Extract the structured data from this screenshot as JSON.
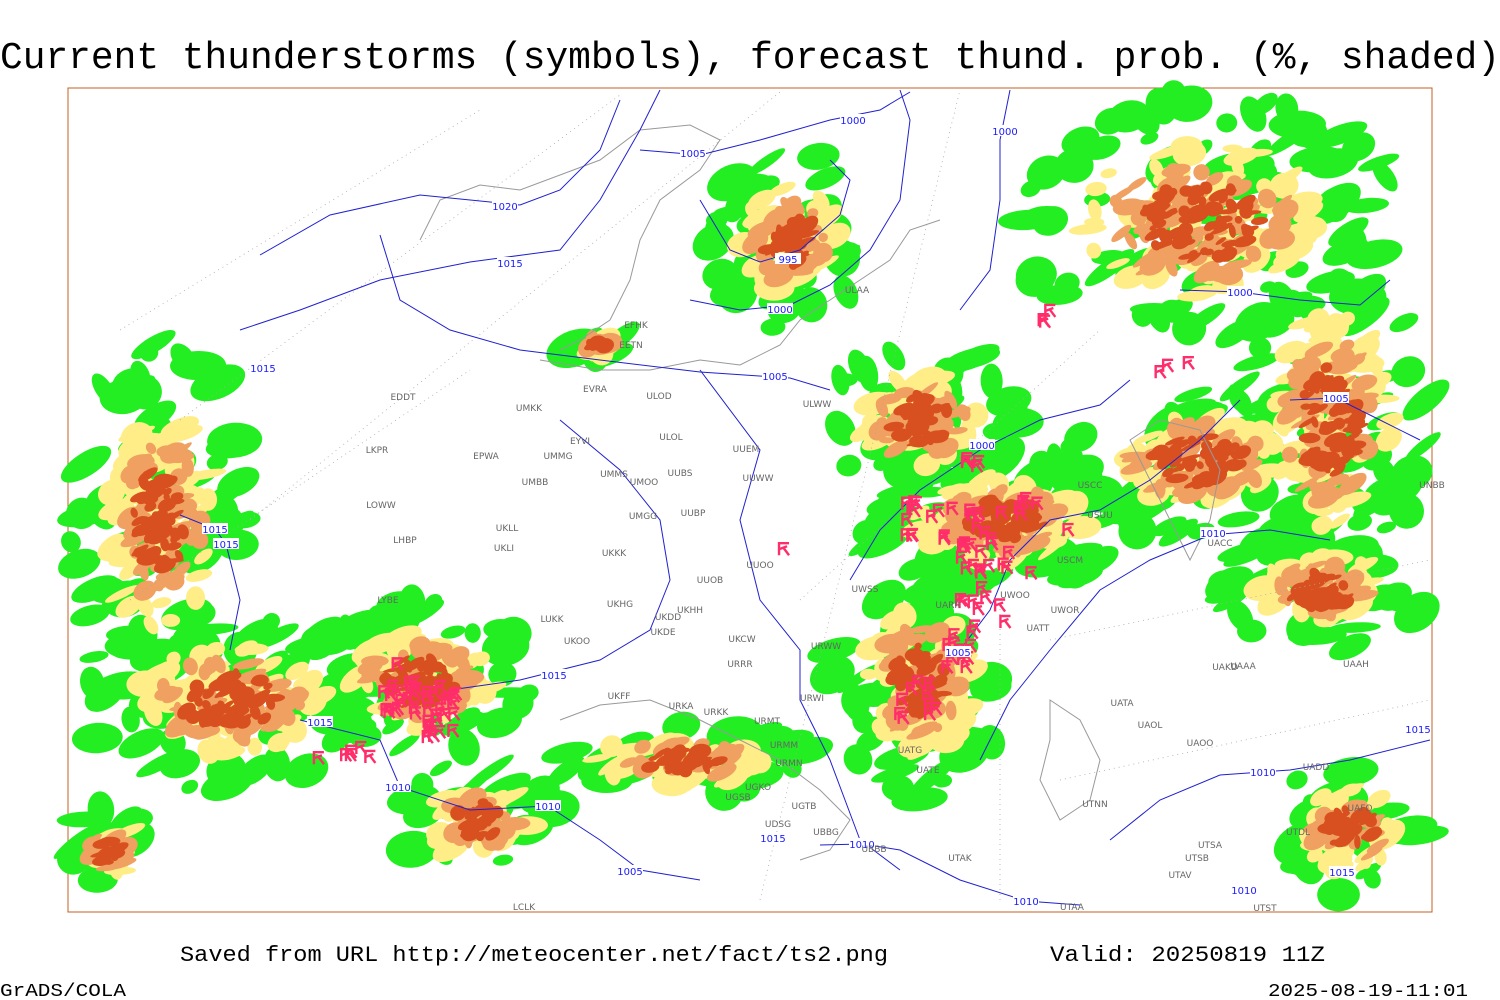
{
  "header": {
    "title": "Current thunderstorms (symbols), forecast thund. prob. (%, shaded)"
  },
  "map": {
    "isobar_labels": [
      1000,
      1005,
      1020,
      1015,
      995,
      1000,
      1000,
      1015,
      1005,
      1000,
      1005,
      1000,
      1015,
      1015,
      1010,
      1005,
      1015,
      1015,
      1010,
      1010,
      1010,
      1015,
      1010,
      1015,
      1005,
      1010,
      1015,
      1010
    ],
    "station_labels": [
      "EFHK",
      "EETN",
      "EVRA",
      "ULOD",
      "EDDT",
      "ULWW",
      "UMKK",
      "EYVI",
      "ULOL",
      "UUEM",
      "LKPR",
      "EPWA",
      "UMMG",
      "UMMS",
      "UMOO",
      "UUBS",
      "UMBB",
      "UUWW",
      "LOWW",
      "UUBP",
      "UMGG",
      "UKLL",
      "LHBP",
      "UKLI",
      "UKKK",
      "UUOO",
      "UUOB",
      "UWSS",
      "LYBE",
      "UKHH",
      "UKHG",
      "UKDD",
      "LUKK",
      "UKOO",
      "UKDE",
      "URWW",
      "UKCW",
      "URRR",
      "UKFF",
      "URKA",
      "URKK",
      "URMT",
      "URWI",
      "URMM",
      "URMN",
      "UGKO",
      "UGSB",
      "UGTB",
      "UDSG",
      "UBBG",
      "UBBB",
      "UTAK",
      "UATE",
      "UATG",
      "UAAA",
      "UATA",
      "UAOL",
      "UAOO",
      "UTNN",
      "UTSB",
      "UTSA",
      "UTAV",
      "UTAA",
      "UTST",
      "UAKD",
      "UAAH",
      "UADD",
      "UTDL",
      "UAFO",
      "UACC",
      "UARR",
      "UWOO",
      "UWOR",
      "UATT",
      "USCM",
      "USUU",
      "USCC",
      "ULAA",
      "UNBB",
      "LCLK"
    ]
  },
  "footer": {
    "source": "Saved from URL http://meteocenter.net/fact/ts2.png",
    "valid": "Valid: 20250819 11Z",
    "software": "GrADS/COLA",
    "timestamp": "2025-08-19-11:01"
  }
}
